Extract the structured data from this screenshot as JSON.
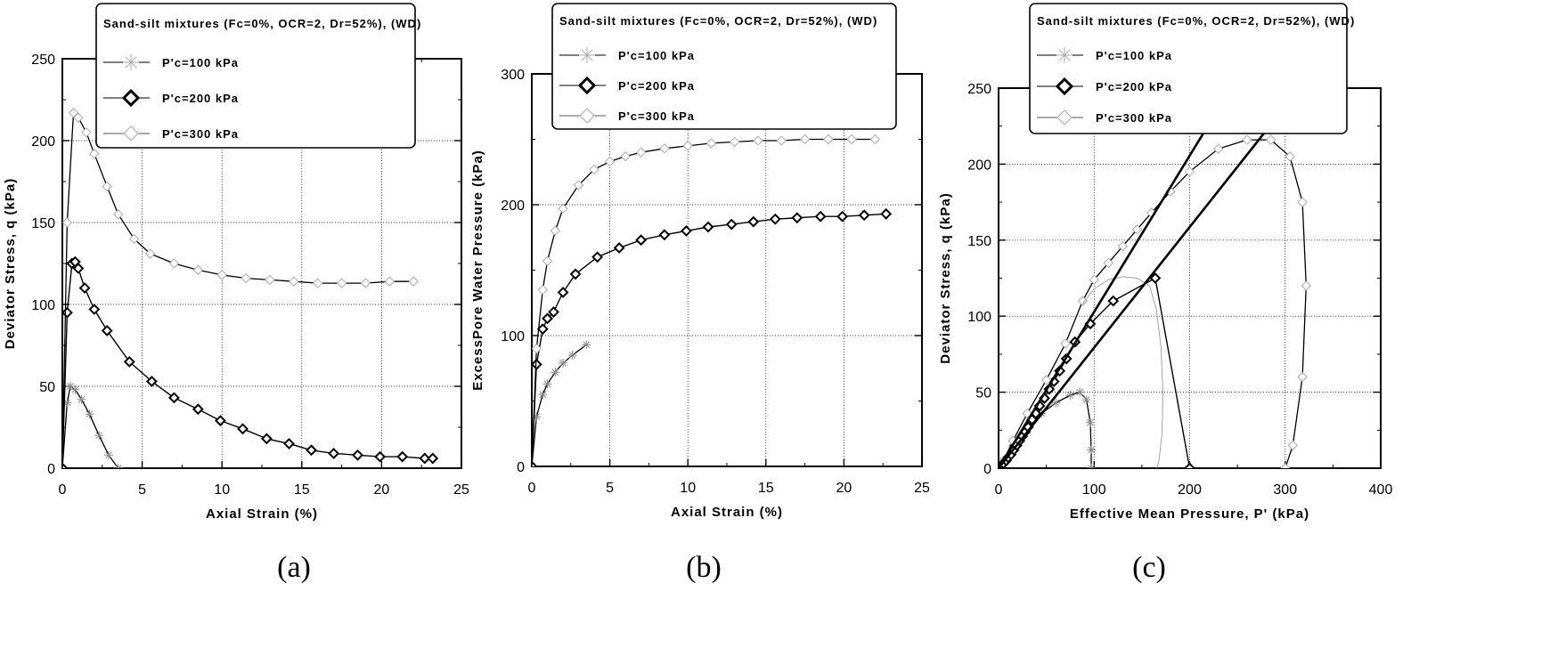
{
  "figure": {
    "charts": [
      {
        "label": "(a)",
        "xlabel": "Axial Strain (%)",
        "ylabel": "Deviator Stress, q (kPa)",
        "legend_title": "Sand-silt mixtures (Fc=0%, OCR=2, Dr=52%), (WD)",
        "legend_entries": [
          "P'c=100 kPa",
          "P'c=200 kPa",
          "P'c=300 kPa"
        ],
        "x_ticks": [
          "0",
          "5",
          "10",
          "15",
          "20",
          "25"
        ],
        "y_ticks": [
          "0",
          "50",
          "100",
          "150",
          "200",
          "250"
        ]
      },
      {
        "label": "(b)",
        "xlabel": "Axial Strain (%)",
        "ylabel": "ExcessPore Water Pressure (kPa)",
        "legend_title": "Sand-silt mixtures (Fc=0%, OCR=2, Dr=52%), (WD)",
        "legend_entries": [
          "P'c=100 kPa",
          "P'c=200 kPa",
          "P'c=300 kPa"
        ],
        "x_ticks": [
          "0",
          "5",
          "10",
          "15",
          "20",
          "25"
        ],
        "y_ticks": [
          "0",
          "100",
          "200",
          "300"
        ]
      },
      {
        "label": "(c)",
        "xlabel": "Effective Mean Pressure, P' (kPa)",
        "ylabel": "Deviator Stress, q (kPa)",
        "legend_title": "Sand-silt mixtures (Fc=0%, OCR=2, Dr=52%), (WD)",
        "legend_entries": [
          "P'c=100 kPa",
          "P'c=200 kPa",
          "P'c=300 kPa"
        ],
        "x_ticks": [
          "0",
          "100",
          "200",
          "300",
          "400"
        ],
        "y_ticks": [
          "0",
          "50",
          "100",
          "150",
          "200",
          "250"
        ]
      }
    ]
  },
  "chart_data": [
    {
      "type": "line",
      "xlim": [
        0,
        25
      ],
      "ylim": [
        0,
        250
      ],
      "grid": true,
      "legend_position": "top",
      "series": [
        {
          "name": "P'c=100 kPa",
          "marker": "star",
          "x": [
            0,
            0.3,
            0.5,
            0.8,
            1.2,
            1.7,
            2.3,
            2.9,
            3.5
          ],
          "y": [
            0,
            40,
            50,
            48,
            42,
            33,
            20,
            8,
            0
          ]
        },
        {
          "name": "P'c=200 kPa",
          "marker": "diamond",
          "x": [
            0,
            0.3,
            0.6,
            0.8,
            1.0,
            1.4,
            2.0,
            2.8,
            4.2,
            5.6,
            7.0,
            8.5,
            9.9,
            11.3,
            12.8,
            14.2,
            15.6,
            17.0,
            18.5,
            19.9,
            21.3,
            22.7,
            23.2
          ],
          "y": [
            0,
            95,
            125,
            126,
            122,
            110,
            97,
            84,
            65,
            53,
            43,
            36,
            29,
            24,
            18,
            15,
            11,
            9,
            8,
            7,
            7,
            6,
            6
          ]
        },
        {
          "name": "P'c=300 kPa",
          "marker": "open-diamond",
          "x": [
            0,
            0.3,
            0.7,
            1.0,
            1.5,
            2.0,
            2.8,
            3.5,
            4.5,
            5.5,
            7.0,
            8.5,
            10.0,
            11.5,
            13.0,
            14.5,
            16.0,
            17.5,
            19.0,
            20.5,
            22.0
          ],
          "y": [
            0,
            150,
            217,
            214,
            205,
            192,
            172,
            155,
            140,
            131,
            125,
            121,
            118,
            116,
            115,
            114,
            113,
            113,
            113,
            114,
            114
          ]
        }
      ]
    },
    {
      "type": "line",
      "xlim": [
        0,
        25
      ],
      "ylim": [
        0,
        300
      ],
      "grid": true,
      "legend_position": "top",
      "series": [
        {
          "name": "P'c=100 kPa",
          "marker": "star",
          "x": [
            0,
            0.3,
            0.7,
            1.0,
            1.5,
            2.0,
            2.6,
            3.5
          ],
          "y": [
            0,
            38,
            55,
            63,
            72,
            79,
            85,
            93
          ]
        },
        {
          "name": "P'c=200 kPa",
          "marker": "diamond",
          "x": [
            0,
            0.3,
            0.7,
            1.0,
            1.4,
            2.0,
            2.8,
            4.2,
            5.6,
            7.0,
            8.5,
            9.9,
            11.3,
            12.8,
            14.2,
            15.6,
            17.0,
            18.5,
            19.9,
            21.3,
            22.7
          ],
          "y": [
            0,
            78,
            105,
            113,
            118,
            133,
            147,
            160,
            167,
            173,
            177,
            180,
            183,
            185,
            187,
            189,
            190,
            191,
            191,
            192,
            193
          ]
        },
        {
          "name": "P'c=300 kPa",
          "marker": "open-diamond",
          "x": [
            0,
            0.3,
            0.7,
            1.0,
            1.5,
            2.0,
            3.0,
            4.0,
            5.0,
            6.0,
            7.0,
            8.5,
            10.0,
            11.5,
            13.0,
            14.5,
            16.0,
            17.5,
            19.0,
            20.5,
            22.0
          ],
          "y": [
            0,
            90,
            135,
            157,
            180,
            197,
            215,
            227,
            233,
            237,
            240,
            243,
            245,
            247,
            248,
            249,
            249,
            250,
            250,
            250,
            250
          ]
        }
      ]
    },
    {
      "type": "line",
      "xlim": [
        0,
        400
      ],
      "ylim": [
        0,
        250
      ],
      "grid": true,
      "legend_position": "top",
      "series": [
        {
          "name": "P'c=100 kPa",
          "marker": "star",
          "x": [
            5,
            15,
            30,
            45,
            60,
            75,
            85,
            92,
            96,
            97,
            97
          ],
          "y": [
            5,
            15,
            27,
            36,
            43,
            48,
            50,
            45,
            30,
            12,
            0
          ]
        },
        {
          "name": "P'c=200 kPa",
          "marker": "diamond",
          "x": [
            5,
            8,
            10,
            13,
            16,
            19,
            22,
            25,
            28,
            31,
            35,
            39,
            43,
            48,
            53,
            58,
            64,
            71,
            80,
            96,
            120,
            164,
            200
          ],
          "y": [
            3,
            5,
            7,
            9,
            12,
            15,
            18,
            21,
            24,
            27,
            32,
            36,
            41,
            46,
            52,
            57,
            64,
            72,
            83,
            95,
            110,
            125,
            0
          ]
        },
        {
          "name": "P'c=300 kPa",
          "marker": "open-diamond",
          "x": [
            5,
            15,
            30,
            50,
            70,
            88,
            100,
            115,
            130,
            145,
            160,
            180,
            200,
            230,
            260,
            285,
            305,
            318,
            322,
            318,
            308,
            300
          ],
          "y": [
            5,
            18,
            36,
            58,
            82,
            110,
            124,
            135,
            146,
            157,
            168,
            182,
            195,
            210,
            216,
            216,
            205,
            175,
            120,
            60,
            15,
            0
          ]
        },
        {
          "name": "",
          "marker": "loop",
          "x": [
            88,
            100,
            115,
            130,
            145,
            158,
            165,
            170,
            172,
            171,
            168,
            166
          ],
          "y": [
            108,
            118,
            124,
            126,
            125,
            120,
            105,
            80,
            50,
            22,
            6,
            0
          ]
        },
        {
          "name": "",
          "marker": "none",
          "x": [
            0,
            280
          ],
          "y": [
            0,
            222
          ]
        },
        {
          "name": "",
          "marker": "none",
          "x": [
            0,
            216
          ],
          "y": [
            0,
            222
          ]
        }
      ]
    }
  ]
}
